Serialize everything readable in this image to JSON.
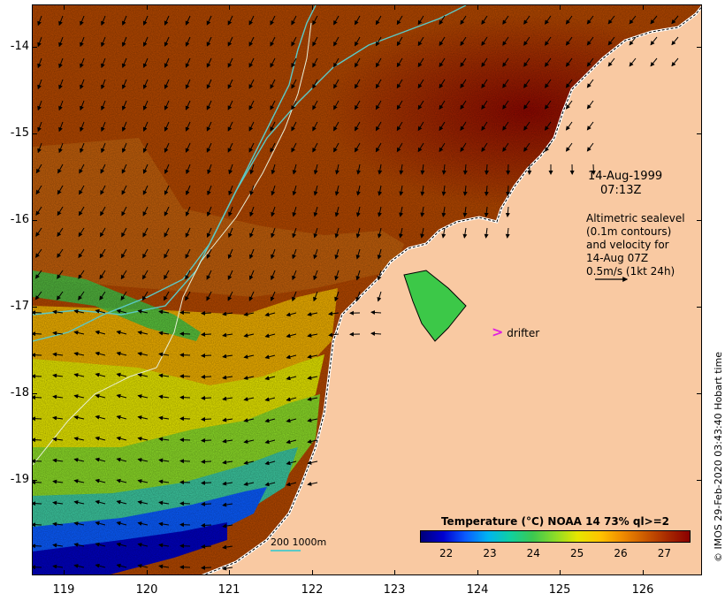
{
  "map": {
    "date_line1": "14-Aug-1999",
    "date_line2": "07:13Z",
    "altimetry_text": [
      "Altimetric sealevel",
      "(0.1m contours)",
      "and velocity for",
      "14-Aug 07Z",
      "0.5m/s (1kt 24h)"
    ],
    "drifter_label": "drifter",
    "drifter_symbol": ">",
    "drifter_color": "#e020e0",
    "credit": "© IMOS 29-Feb-2020 03:43:40 Hobart time",
    "bathymetry_label": "200  1000m",
    "bathymetry_color": "#5cc9c6",
    "land_color": "#f9c9a2"
  },
  "axes": {
    "lat_ticks": [
      "-14",
      "-15",
      "-16",
      "-17",
      "-18",
      "-19"
    ],
    "lon_ticks": [
      "119",
      "120",
      "121",
      "122",
      "123",
      "124",
      "125",
      "126"
    ]
  },
  "legend": {
    "title": "Temperature (°C) NOAA 14 73% ql>=2",
    "labels": [
      "22",
      "23",
      "24",
      "25",
      "26",
      "27"
    ],
    "range": [
      21.4,
      27.6
    ],
    "colors": [
      "#00007a",
      "#0000d0",
      "#0a5cff",
      "#00b4f0",
      "#10d0a0",
      "#3cc850",
      "#8cdc28",
      "#e6e600",
      "#ffc400",
      "#f08c00",
      "#cc5a00",
      "#a82a00",
      "#8a0000"
    ]
  }
}
